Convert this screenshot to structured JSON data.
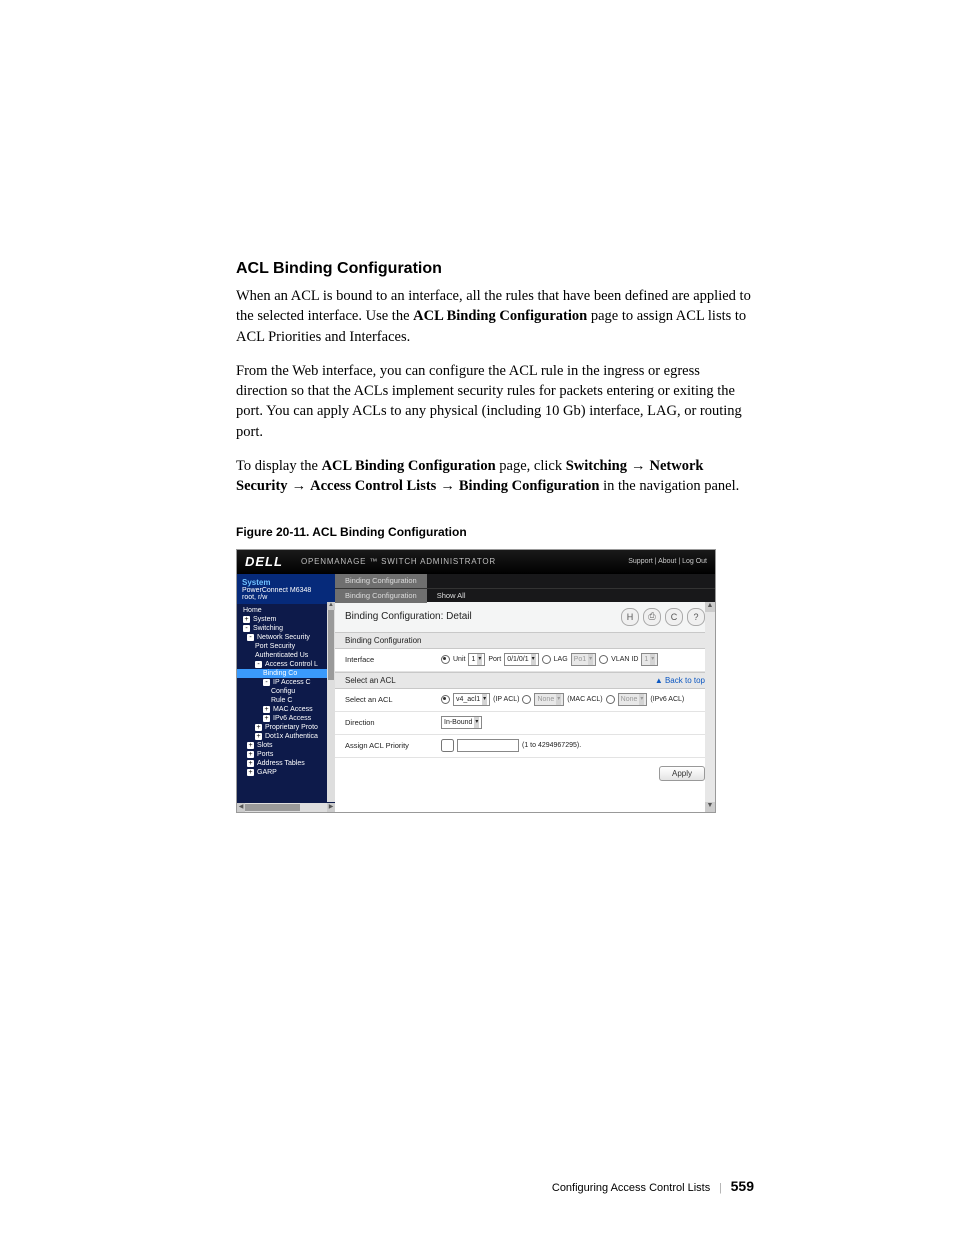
{
  "doc": {
    "h2": "ACL Binding Configuration",
    "p1a": "When an ACL is bound to an interface, all the rules that have been defined are applied to the selected interface. Use the ",
    "p1b": "ACL Binding Configuration",
    "p1c": " page to assign ACL lists to ACL Priorities and Interfaces.",
    "p2": "From the Web interface, you can configure the ACL rule in the ingress or egress direction so that the ACLs implement security rules for packets entering or exiting the port. You can apply ACLs to any physical (including 10 Gb) interface, LAG, or routing port.",
    "p3a": "To display the ",
    "p3b": "ACL Binding Configuration",
    "p3c": " page, click ",
    "p3d": "Switching",
    "p3e": "Network Security",
    "p3f": "Access Control Lists",
    "p3g": "Binding Configuration",
    "p3h": " in the navigation panel.",
    "arrow": " → ",
    "figcap": "Figure 20-11.    ACL Binding Configuration"
  },
  "screenshot": {
    "brand": "DELL",
    "app_title": "OPENMANAGE ™ SWITCH ADMINISTRATOR",
    "top_links": "Support | About | Log Out",
    "sidebar": {
      "system": "System",
      "model": "PowerConnect M6348",
      "user": "root, r/w",
      "items": [
        {
          "lvl": 0,
          "icon": "",
          "label": "Home",
          "hl": false
        },
        {
          "lvl": 0,
          "icon": "+",
          "label": "System",
          "hl": false
        },
        {
          "lvl": 0,
          "icon": "-",
          "label": "Switching",
          "hl": false
        },
        {
          "lvl": 1,
          "icon": "-",
          "label": "Network Security",
          "hl": false
        },
        {
          "lvl": 2,
          "icon": "",
          "label": "Port Security",
          "hl": false
        },
        {
          "lvl": 2,
          "icon": "",
          "label": "Authenticated Us",
          "hl": false
        },
        {
          "lvl": 2,
          "icon": "-",
          "label": "Access Control L",
          "hl": false
        },
        {
          "lvl": 3,
          "icon": "",
          "label": "Binding Co",
          "hl": true
        },
        {
          "lvl": 3,
          "icon": "-",
          "label": "IP Access C",
          "hl": false
        },
        {
          "lvl": 4,
          "icon": "",
          "label": "Configu",
          "hl": false
        },
        {
          "lvl": 4,
          "icon": "",
          "label": "Rule C",
          "hl": false
        },
        {
          "lvl": 3,
          "icon": "+",
          "label": "MAC Access",
          "hl": false
        },
        {
          "lvl": 3,
          "icon": "+",
          "label": "IPv6 Access",
          "hl": false
        },
        {
          "lvl": 2,
          "icon": "+",
          "label": "Proprietary Proto",
          "hl": false
        },
        {
          "lvl": 2,
          "icon": "+",
          "label": "Dot1x Authentica",
          "hl": false
        },
        {
          "lvl": 1,
          "icon": "+",
          "label": "Slots",
          "hl": false
        },
        {
          "lvl": 1,
          "icon": "+",
          "label": "Ports",
          "hl": false
        },
        {
          "lvl": 1,
          "icon": "+",
          "label": "Address Tables",
          "hl": false
        },
        {
          "lvl": 1,
          "icon": "+",
          "label": "GARP",
          "hl": false
        }
      ]
    },
    "tabs": {
      "t1": "Binding Configuration",
      "sub1": "Binding Configuration",
      "sub2": "Show All"
    },
    "detail_title": "Binding Configuration: Detail",
    "icons": {
      "save": "H",
      "print": "⎙",
      "refresh": "C",
      "help": "?"
    },
    "group1": "Binding Configuration",
    "row_interface": {
      "label": "Interface",
      "unit_lbl": "Unit",
      "unit_val": "1",
      "port_lbl": "Port",
      "port_val": "0/1/0/1",
      "lag_lbl": "LAG",
      "lag_val": "Po1",
      "vlan_lbl": "VLAN ID",
      "vlan_val": "1"
    },
    "group2": "Select an ACL",
    "back_top": "▲ Back to top",
    "row_select": {
      "label": "Select an ACL",
      "ip_val": "v4_acl1",
      "ip_lbl": "(IP ACL)",
      "mac_val": "None",
      "mac_lbl": "(MAC ACL)",
      "v6_val": "None",
      "v6_lbl": "(IPv6 ACL)"
    },
    "row_direction": {
      "label": "Direction",
      "val": "In-Bound"
    },
    "row_priority": {
      "label": "Assign ACL Priority",
      "range": "(1 to 4294967295)."
    },
    "apply": "Apply"
  },
  "footer": {
    "chapter": "Configuring Access Control Lists",
    "page": "559"
  },
  "colors": {
    "header_bg": "#000000",
    "sidebar_bg": "#0d1a4a",
    "highlight": "#3a9afc",
    "link_blue": "#0b57c2"
  }
}
